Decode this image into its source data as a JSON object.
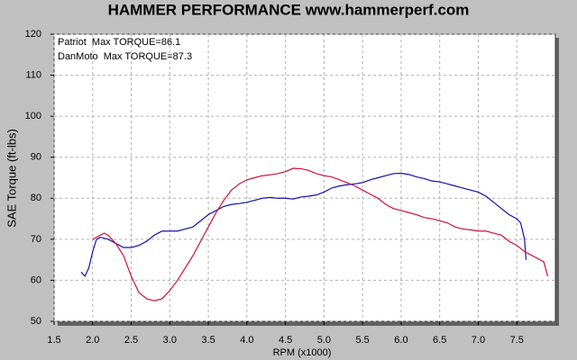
{
  "chart_data": {
    "type": "line",
    "title": "HAMMER PERFORMANCE www.hammerperf.com",
    "x_label": "RPM (x1000)",
    "y_label": "SAE Torque (ft-lbs)",
    "xlim": [
      1.5,
      8.0
    ],
    "ylim": [
      50,
      120
    ],
    "xticks": [
      1.5,
      {
        "value": 2,
        "label": "2.0"
      },
      2.5,
      {
        "value": 3,
        "label": "3.0"
      },
      3.5,
      {
        "value": 4,
        "label": "4.0"
      },
      4.5,
      {
        "value": 5,
        "label": "5.0"
      },
      5.5,
      {
        "value": 6,
        "label": "6.0"
      },
      6.5,
      {
        "value": 7,
        "label": "7.0"
      },
      7.5
    ],
    "yticks": [
      50,
      60,
      70,
      80,
      90,
      100,
      110,
      120
    ],
    "grid": true,
    "legend": "top-left",
    "series": [
      {
        "name": "Patriot  Max TORQUE=86.1",
        "color": "#1010b0",
        "x": [
          1.85,
          1.9,
          1.95,
          2.0,
          2.05,
          2.1,
          2.2,
          2.3,
          2.4,
          2.5,
          2.6,
          2.7,
          2.8,
          2.9,
          3.0,
          3.1,
          3.2,
          3.3,
          3.4,
          3.5,
          3.6,
          3.7,
          3.8,
          3.9,
          4.0,
          4.1,
          4.2,
          4.3,
          4.4,
          4.5,
          4.6,
          4.7,
          4.8,
          4.9,
          5.0,
          5.1,
          5.2,
          5.3,
          5.4,
          5.5,
          5.6,
          5.7,
          5.8,
          5.9,
          6.0,
          6.1,
          6.2,
          6.3,
          6.4,
          6.5,
          6.6,
          6.7,
          6.8,
          6.9,
          7.0,
          7.1,
          7.2,
          7.3,
          7.4,
          7.5,
          7.55,
          7.6,
          7.62
        ],
        "values": [
          62,
          61,
          63,
          67,
          70,
          70.5,
          70,
          69,
          68,
          68,
          68.5,
          69.5,
          71,
          72,
          72,
          72,
          72.5,
          73,
          74.5,
          76,
          77,
          78,
          78.5,
          78.7,
          79,
          79.5,
          80,
          80.2,
          80,
          80,
          79.8,
          80.3,
          80.5,
          80.8,
          81.5,
          82.5,
          83,
          83.3,
          83.5,
          83.8,
          84.5,
          85,
          85.5,
          86,
          86.1,
          85.8,
          85.2,
          84.8,
          84.2,
          84,
          83.5,
          83,
          82.5,
          82,
          81.5,
          80.5,
          79,
          77.5,
          76,
          75,
          74,
          70,
          65
        ]
      },
      {
        "name": "DanMoto  Max TORQUE=87.3",
        "color": "#d0103a",
        "x": [
          2.0,
          2.1,
          2.15,
          2.2,
          2.3,
          2.4,
          2.5,
          2.6,
          2.7,
          2.8,
          2.9,
          3.0,
          3.1,
          3.2,
          3.3,
          3.4,
          3.5,
          3.6,
          3.7,
          3.8,
          3.9,
          4.0,
          4.1,
          4.2,
          4.3,
          4.4,
          4.5,
          4.6,
          4.7,
          4.8,
          4.9,
          5.0,
          5.1,
          5.2,
          5.3,
          5.4,
          5.5,
          5.6,
          5.7,
          5.8,
          5.9,
          6.0,
          6.1,
          6.2,
          6.3,
          6.4,
          6.5,
          6.6,
          6.7,
          6.8,
          6.9,
          7.0,
          7.1,
          7.2,
          7.3,
          7.4,
          7.5,
          7.6,
          7.7,
          7.8,
          7.85,
          7.9
        ],
        "values": [
          70,
          71,
          71.5,
          71,
          69,
          66,
          61,
          57,
          55.5,
          55,
          55.5,
          57.5,
          60,
          63,
          66,
          69.5,
          73,
          76.5,
          79.5,
          82,
          83.5,
          84.5,
          85,
          85.5,
          85.7,
          86,
          86.5,
          87.3,
          87.2,
          86.8,
          86,
          85.5,
          85.2,
          84.5,
          83.8,
          83,
          82,
          81,
          80,
          78.5,
          77.5,
          77,
          76.5,
          76,
          75.3,
          75,
          74.5,
          74,
          73,
          72.5,
          72.3,
          72,
          72,
          71.5,
          71,
          69.5,
          68.5,
          67,
          66,
          65,
          64.5,
          61
        ]
      }
    ]
  }
}
